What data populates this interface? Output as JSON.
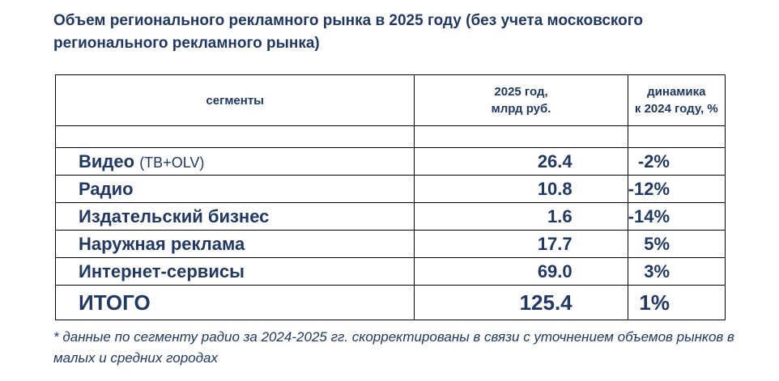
{
  "title": "Объем регионального рекламного рынка в 2025 году (без учета московского регионального рекламного рынка)",
  "table": {
    "headers": [
      "сегменты",
      "2025 год,\nмлрд руб.",
      "динамика\nк 2024 году, %"
    ],
    "header_lines": {
      "col2": [
        "2025 год,",
        "млрд руб."
      ],
      "col3": [
        "динамика",
        "к 2024 году, %"
      ]
    },
    "rows": [
      {
        "segment": "Видео",
        "note": "(ТВ+OLV)",
        "value": "26.4",
        "change": "-2%"
      },
      {
        "segment": "Радио",
        "value": "10.8",
        "change": "-12%"
      },
      {
        "segment": "Издательский бизнес",
        "value": "1.6",
        "change": "-14%"
      },
      {
        "segment": "Наружная реклама",
        "value": "17.7",
        "change": "5%"
      },
      {
        "segment": "Интернет-сервисы",
        "value": "69.0",
        "change": "3%"
      }
    ],
    "total": {
      "segment": "ИТОГО",
      "value": "125.4",
      "change": "1%"
    }
  },
  "footnote": "* данные по сегменту радио за 2024-2025 гг. скорректированы в связи с уточнением объемов рынков в малых и средних городах"
}
